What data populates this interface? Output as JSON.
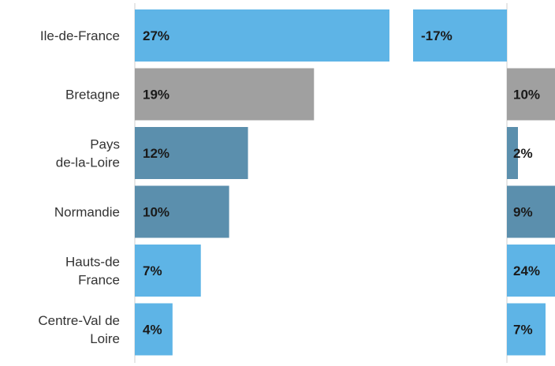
{
  "chart_data": {
    "type": "bar",
    "orientation": "horizontal",
    "categories": [
      [
        "Ile-de-France"
      ],
      [
        "Bretagne"
      ],
      [
        "Pays",
        "de-la-Loire"
      ],
      [
        "Normandie"
      ],
      [
        "Hauts-de",
        "France"
      ],
      [
        "Centre-Val de",
        "Loire"
      ]
    ],
    "series": [
      {
        "values": [
          27,
          19,
          12,
          10,
          7,
          4
        ],
        "labels": [
          "27%",
          "19%",
          "12%",
          "10%",
          "7%",
          "4%"
        ]
      },
      {
        "values": [
          -17,
          10,
          2,
          9,
          24,
          7
        ],
        "labels": [
          "-17%",
          "10%",
          "2%",
          "9%",
          "24%",
          "7%"
        ]
      }
    ],
    "bar_colors": [
      "#5eb4e6",
      "#a0a0a0",
      "#5b8fad",
      "#5b8fad",
      "#5eb4e6",
      "#5eb4e6"
    ],
    "panel_1_xlim": [
      0,
      30
    ],
    "panel_2_xlim": [
      -25,
      25
    ],
    "grid": false,
    "legend": "none"
  }
}
